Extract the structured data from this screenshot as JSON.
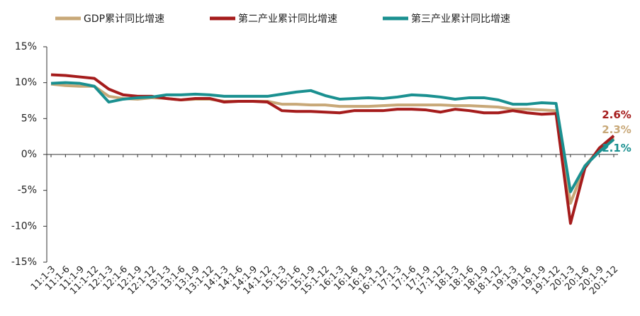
{
  "chart_data": {
    "type": "line",
    "categories": [
      "11:1-3",
      "11:1-6",
      "11:1-9",
      "11:1-12",
      "12:1-3",
      "12:1-6",
      "12:1-9",
      "12:1-12",
      "13:1-3",
      "13:1-6",
      "13:1-9",
      "13:1-12",
      "14:1-3",
      "14:1-6",
      "14:1-9",
      "14:1-12",
      "15:1-3",
      "15:1-6",
      "15:1-9",
      "15:1-12",
      "16:1-3",
      "16:1-6",
      "16:1-9",
      "16:1-12",
      "17:1-3",
      "17:1-6",
      "17:1-9",
      "17:1-12",
      "18:1-3",
      "18:1-6",
      "18:1-9",
      "18:1-12",
      "19:1-3",
      "19:1-6",
      "19:1-9",
      "19:1-12",
      "20:1-3",
      "20:1-6",
      "20:1-9",
      "20:1-12"
    ],
    "series": [
      {
        "name": "GDP累计同比增速",
        "color": "#c8a878",
        "values": [
          9.8,
          9.6,
          9.5,
          9.5,
          8.1,
          7.8,
          7.7,
          7.9,
          7.8,
          7.6,
          7.7,
          7.7,
          7.4,
          7.4,
          7.4,
          7.4,
          7.0,
          7.0,
          6.9,
          6.9,
          6.7,
          6.7,
          6.7,
          6.8,
          6.9,
          6.9,
          6.9,
          6.9,
          6.8,
          6.8,
          6.7,
          6.6,
          6.3,
          6.3,
          6.2,
          6.1,
          -6.8,
          -1.6,
          0.7,
          2.3
        ],
        "value_labels": [
          null,
          null,
          null,
          null,
          null,
          null,
          null,
          null,
          null,
          null,
          null,
          null,
          null,
          null,
          null,
          null,
          null,
          null,
          null,
          null,
          null,
          null,
          null,
          null,
          null,
          null,
          null,
          null,
          null,
          null,
          null,
          null,
          null,
          null,
          null,
          null,
          null,
          null,
          null,
          "2.3%"
        ]
      },
      {
        "name": "第二产业累计同比增速",
        "color": "#a51c1c",
        "values": [
          11.1,
          11.0,
          10.8,
          10.6,
          9.1,
          8.3,
          8.1,
          8.1,
          7.8,
          7.6,
          7.8,
          7.8,
          7.3,
          7.4,
          7.4,
          7.3,
          6.1,
          6.0,
          6.0,
          5.9,
          5.8,
          6.1,
          6.1,
          6.1,
          6.3,
          6.3,
          6.2,
          5.9,
          6.3,
          6.1,
          5.8,
          5.8,
          6.1,
          5.8,
          5.6,
          5.7,
          -9.6,
          -1.9,
          0.9,
          2.6
        ],
        "value_labels": [
          null,
          null,
          null,
          null,
          null,
          null,
          null,
          null,
          null,
          null,
          null,
          null,
          null,
          null,
          null,
          null,
          null,
          null,
          null,
          null,
          null,
          null,
          null,
          null,
          null,
          null,
          null,
          null,
          null,
          null,
          null,
          null,
          null,
          null,
          null,
          null,
          null,
          null,
          null,
          "2.6%"
        ]
      },
      {
        "name": "第三产业累计同比增速",
        "color": "#1a9090",
        "values": [
          9.9,
          10.0,
          9.9,
          9.5,
          7.3,
          7.7,
          7.9,
          8.0,
          8.3,
          8.3,
          8.4,
          8.3,
          8.1,
          8.1,
          8.1,
          8.1,
          8.4,
          8.7,
          8.9,
          8.2,
          7.7,
          7.8,
          7.9,
          7.8,
          8.0,
          8.3,
          8.2,
          8.0,
          7.7,
          7.9,
          7.9,
          7.6,
          7.0,
          7.0,
          7.2,
          7.1,
          -5.2,
          -1.6,
          0.4,
          2.1
        ],
        "value_labels": [
          null,
          null,
          null,
          null,
          null,
          null,
          null,
          null,
          null,
          null,
          null,
          null,
          null,
          null,
          null,
          null,
          null,
          null,
          null,
          null,
          null,
          null,
          null,
          null,
          null,
          null,
          null,
          null,
          null,
          null,
          null,
          null,
          null,
          null,
          null,
          null,
          null,
          null,
          null,
          "2.1%"
        ]
      }
    ],
    "ylim": [
      -15,
      15
    ],
    "yticks": [
      {
        "value": -15,
        "label": "-15%"
      },
      {
        "value": -10,
        "label": "-10%"
      },
      {
        "value": -5,
        "label": "-5%"
      },
      {
        "value": 0,
        "label": "0%"
      },
      {
        "value": 5,
        "label": "5%"
      },
      {
        "value": 10,
        "label": "10%"
      },
      {
        "value": 15,
        "label": "15%"
      }
    ],
    "legend": "top"
  }
}
